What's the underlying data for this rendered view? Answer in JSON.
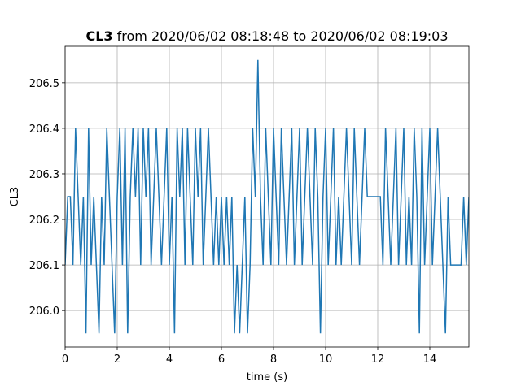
{
  "chart_data": {
    "type": "line",
    "title_name": "CL3",
    "title": "from 2020/06/02 08:18:48 to 2020/06/02 08:19:03",
    "xlabel": "time (s)",
    "ylabel": "CL3",
    "xlim": [
      0,
      15.5
    ],
    "ylim": [
      205.92,
      206.58
    ],
    "xticks": [
      0,
      2,
      4,
      6,
      8,
      10,
      12,
      14
    ],
    "yticks": [
      {
        "value": 206.0,
        "label": "206.0"
      },
      206.1,
      206.2,
      206.3,
      206.4,
      {
        "value": 206.5,
        "label": "206.5"
      }
    ],
    "grid": true,
    "x": [
      0,
      0.1,
      0.2,
      0.3,
      0.4,
      0.5,
      0.6,
      0.7,
      0.8,
      0.9,
      1,
      1.1,
      1.2,
      1.3,
      1.4,
      1.5,
      1.6,
      1.7,
      1.8,
      1.9,
      2,
      2.1,
      2.2,
      2.3,
      2.4,
      2.5,
      2.6,
      2.7,
      2.8,
      2.9,
      3,
      3.1,
      3.2,
      3.3,
      3.4,
      3.5,
      3.6,
      3.7,
      3.8,
      3.9,
      4,
      4.1,
      4.2,
      4.3,
      4.4,
      4.5,
      4.6,
      4.7,
      4.8,
      4.9,
      5,
      5.1,
      5.2,
      5.3,
      5.4,
      5.5,
      5.6,
      5.7,
      5.8,
      5.9,
      6,
      6.1,
      6.2,
      6.3,
      6.4,
      6.5,
      6.6,
      6.7,
      6.8,
      6.9,
      7,
      7.1,
      7.2,
      7.3,
      7.4,
      7.5,
      7.6,
      7.7,
      7.8,
      7.9,
      8,
      8.1,
      8.2,
      8.3,
      8.4,
      8.5,
      8.6,
      8.7,
      8.8,
      8.9,
      9,
      9.1,
      9.2,
      9.3,
      9.4,
      9.5,
      9.6,
      9.7,
      9.8,
      9.9,
      10,
      10.1,
      10.2,
      10.3,
      10.4,
      10.5,
      10.6,
      10.7,
      10.8,
      10.9,
      11,
      11.1,
      11.2,
      11.3,
      11.4,
      11.5,
      11.6,
      11.7,
      11.8,
      11.9,
      12,
      12.1,
      12.2,
      12.3,
      12.4,
      12.5,
      12.6,
      12.7,
      12.8,
      12.9,
      13,
      13.1,
      13.2,
      13.3,
      13.4,
      13.5,
      13.6,
      13.7,
      13.8,
      13.9,
      14,
      14.1,
      14.2,
      14.3,
      14.4,
      14.5,
      14.6,
      14.7,
      14.8,
      14.9,
      15,
      15.1,
      15.2,
      15.3,
      15.4,
      15.5
    ],
    "series": [
      {
        "color": "#1f77b4",
        "values": [
          206.1,
          206.25,
          206.25,
          206.1,
          206.4,
          206.25,
          206.1,
          206.25,
          205.95,
          206.4,
          206.1,
          206.25,
          206.1,
          205.95,
          206.25,
          206.1,
          206.4,
          206.25,
          206.1,
          205.95,
          206.25,
          206.4,
          206.1,
          206.4,
          205.95,
          206.25,
          206.4,
          206.25,
          206.4,
          206.1,
          206.4,
          206.25,
          206.4,
          206.1,
          206.25,
          206.4,
          206.25,
          206.1,
          206.25,
          206.4,
          206.1,
          206.25,
          205.95,
          206.4,
          206.25,
          206.4,
          206.1,
          206.4,
          206.25,
          206.1,
          206.4,
          206.25,
          206.4,
          206.1,
          206.25,
          206.4,
          206.25,
          206.1,
          206.25,
          206.1,
          206.25,
          206.1,
          206.25,
          206.1,
          206.25,
          205.95,
          206.1,
          205.95,
          206.1,
          206.25,
          205.95,
          206.1,
          206.4,
          206.25,
          206.55,
          206.25,
          206.1,
          206.4,
          206.25,
          206.1,
          206.4,
          206.25,
          206.1,
          206.4,
          206.25,
          206.1,
          206.25,
          206.4,
          206.1,
          206.25,
          206.4,
          206.1,
          206.25,
          206.4,
          206.25,
          206.1,
          206.4,
          206.25,
          205.95,
          206.25,
          206.4,
          206.1,
          206.25,
          206.4,
          206.1,
          206.25,
          206.1,
          206.25,
          206.4,
          206.25,
          206.1,
          206.4,
          206.25,
          206.1,
          206.25,
          206.4,
          206.25,
          206.25,
          206.25,
          206.25,
          206.25,
          206.25,
          206.1,
          206.4,
          206.25,
          206.1,
          206.25,
          206.4,
          206.1,
          206.25,
          206.4,
          206.1,
          206.25,
          206.1,
          206.4,
          206.25,
          205.95,
          206.4,
          206.1,
          206.25,
          206.4,
          206.1,
          206.25,
          206.4,
          206.25,
          206.1,
          205.95,
          206.25,
          206.1,
          206.1,
          206.1,
          206.1,
          206.1,
          206.25,
          206.1,
          206.25
        ]
      }
    ]
  }
}
